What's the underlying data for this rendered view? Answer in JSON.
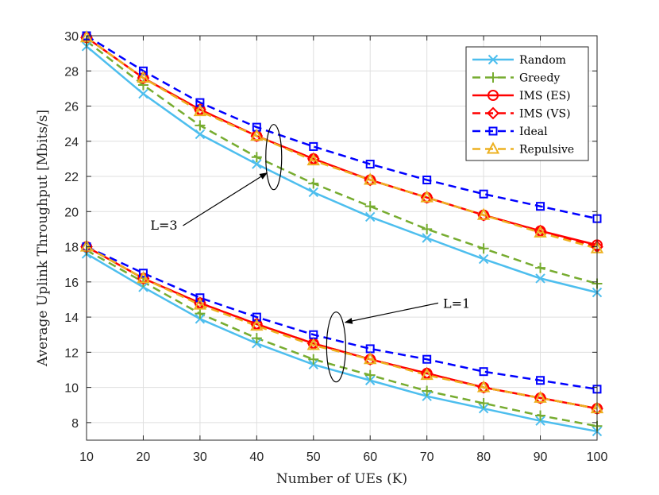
{
  "chart_data": {
    "type": "line",
    "title": "",
    "xlabel": "Number of UEs (K)",
    "ylabel": "Average Uplink Throughput [Mbits/s]",
    "xlim": [
      10,
      100
    ],
    "ylim": [
      7,
      30
    ],
    "grid": true,
    "legend_position": "top-right",
    "x": [
      10,
      20,
      30,
      40,
      50,
      60,
      70,
      80,
      90,
      100
    ],
    "x_ticks": [
      "10",
      "20",
      "30",
      "40",
      "50",
      "60",
      "70",
      "80",
      "90",
      "100"
    ],
    "y_ticks": [
      "8",
      "10",
      "12",
      "14",
      "16",
      "18",
      "20",
      "22",
      "24",
      "26",
      "28",
      "30"
    ],
    "series": [
      {
        "name": "Random",
        "color": "#4DBEEE",
        "dash": "solid",
        "marker": "x",
        "groups": {
          "L=3": [
            29.4,
            26.7,
            24.4,
            22.7,
            21.1,
            19.7,
            18.5,
            17.3,
            16.2,
            15.4
          ],
          "L=1": [
            17.6,
            15.7,
            13.9,
            12.5,
            11.3,
            10.4,
            9.5,
            8.8,
            8.1,
            7.5
          ]
        }
      },
      {
        "name": "Greedy",
        "color": "#77AC30",
        "dash": "dashed",
        "marker": "plus",
        "groups": {
          "L=3": [
            29.7,
            27.2,
            24.9,
            23.1,
            21.6,
            20.3,
            19.0,
            17.9,
            16.8,
            15.9
          ],
          "L=1": [
            17.8,
            16.0,
            14.2,
            12.8,
            11.6,
            10.7,
            9.8,
            9.1,
            8.4,
            7.8
          ]
        }
      },
      {
        "name": "IMS (ES)",
        "color": "#FF0000",
        "dash": "solid",
        "marker": "circle",
        "groups": {
          "L=3": [
            29.9,
            27.6,
            25.8,
            24.3,
            23.0,
            21.8,
            20.8,
            19.8,
            18.9,
            18.1
          ],
          "L=1": [
            18.0,
            16.2,
            14.8,
            13.6,
            12.5,
            11.6,
            10.8,
            10.0,
            9.4,
            8.8
          ]
        }
      },
      {
        "name": "IMS (VS)",
        "color": "#FF0000",
        "dash": "dashed",
        "marker": "diamond",
        "groups": {
          "L=3": [
            29.9,
            27.6,
            25.8,
            24.3,
            23.0,
            21.8,
            20.8,
            19.8,
            18.9,
            18.0
          ],
          "L=1": [
            18.0,
            16.2,
            14.8,
            13.6,
            12.5,
            11.6,
            10.8,
            10.0,
            9.4,
            8.8
          ]
        }
      },
      {
        "name": "Ideal",
        "color": "#0000FF",
        "dash": "dashed",
        "marker": "square",
        "groups": {
          "L=3": [
            30.0,
            28.0,
            26.2,
            24.8,
            23.7,
            22.7,
            21.8,
            21.0,
            20.3,
            19.6
          ],
          "L=1": [
            18.0,
            16.5,
            15.1,
            14.0,
            13.0,
            12.2,
            11.6,
            10.9,
            10.4,
            9.9
          ]
        }
      },
      {
        "name": "Repulsive",
        "color": "#EDB120",
        "dash": "dashed",
        "marker": "triangle",
        "groups": {
          "L=3": [
            29.9,
            27.6,
            25.7,
            24.3,
            22.9,
            21.8,
            20.8,
            19.8,
            18.8,
            17.9
          ],
          "L=1": [
            18.0,
            16.2,
            14.7,
            13.5,
            12.4,
            11.6,
            10.7,
            10.0,
            9.4,
            8.8
          ]
        }
      }
    ],
    "annotations": [
      {
        "text": "L=3",
        "ellipse_center": [
          43,
          23.1
        ],
        "arrow_from": [
          27,
          19.2
        ],
        "arrow_to": [
          41.8,
          22.2
        ]
      },
      {
        "text": "L=1",
        "ellipse_center": [
          54,
          12.3
        ],
        "arrow_from": [
          72,
          14.8
        ],
        "arrow_to": [
          55.6,
          13.7
        ]
      }
    ]
  }
}
